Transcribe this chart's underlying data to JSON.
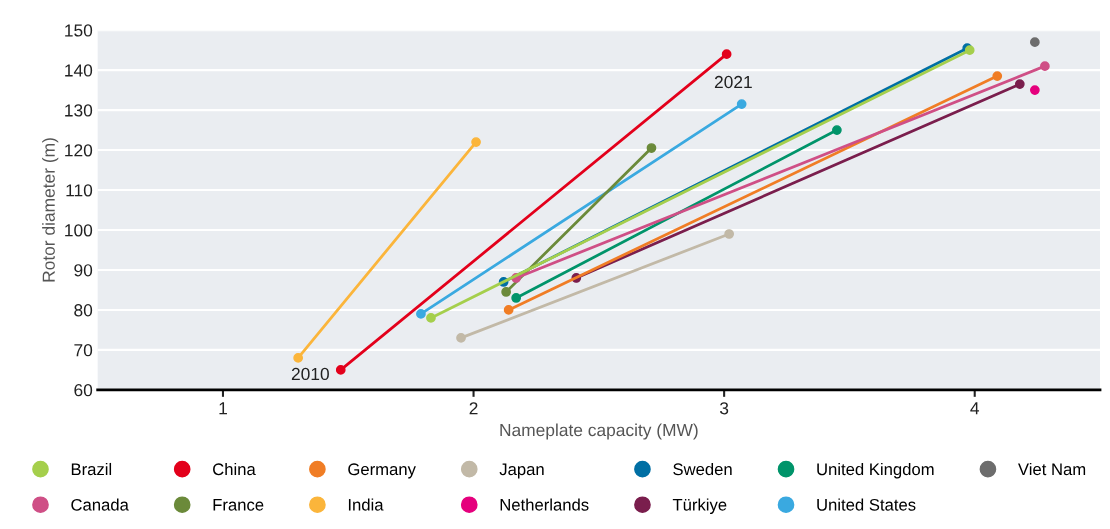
{
  "chart_data": {
    "type": "line",
    "xlabel": "Nameplate capacity (MW)",
    "ylabel": "Rotor diameter (m)",
    "xlim": [
      0.5,
      4.5
    ],
    "xticks": [
      1,
      2,
      3,
      4
    ],
    "ylim": [
      60,
      150
    ],
    "yticks": [
      60,
      70,
      80,
      90,
      100,
      110,
      120,
      130,
      140,
      150
    ],
    "grid": "y",
    "legend": "bottom",
    "marker": "circle",
    "line_style": "solid",
    "annotations": [
      {
        "text": "2010",
        "x": 1.47,
        "y": 65
      },
      {
        "text": "2021",
        "x": 3.07,
        "y": 131.5
      }
    ],
    "series": [
      {
        "name": "Brazil",
        "color": "#a5cf4c",
        "x": [
          1.83,
          3.98
        ],
        "values": [
          78,
          145
        ]
      },
      {
        "name": "Canada",
        "color": "#cf4f86",
        "x": [
          2.17,
          4.28
        ],
        "values": [
          88,
          141
        ]
      },
      {
        "name": "China",
        "color": "#e3001b",
        "x": [
          1.47,
          3.01
        ],
        "values": [
          65,
          144
        ]
      },
      {
        "name": "France",
        "color": "#6b8a3a",
        "x": [
          2.13,
          2.71
        ],
        "values": [
          84.5,
          120.5
        ]
      },
      {
        "name": "Germany",
        "color": "#f07d25",
        "x": [
          2.14,
          4.09
        ],
        "values": [
          80,
          138.5
        ]
      },
      {
        "name": "India",
        "color": "#fbb53b",
        "x": [
          1.3,
          2.01
        ],
        "values": [
          68,
          122
        ]
      },
      {
        "name": "Japan",
        "color": "#c2b9a7",
        "x": [
          1.95,
          3.02
        ],
        "values": [
          73,
          99
        ]
      },
      {
        "name": "Netherlands",
        "color": "#e5007d",
        "x": [
          4.24
        ],
        "values": [
          135
        ]
      },
      {
        "name": "Sweden",
        "color": "#006fa4",
        "x": [
          2.12,
          3.97
        ],
        "values": [
          87,
          145.5
        ]
      },
      {
        "name": "Türkiye",
        "color": "#7a1e4d",
        "x": [
          2.41,
          4.18
        ],
        "values": [
          88,
          136.5
        ]
      },
      {
        "name": "United Kingdom",
        "color": "#00946a",
        "x": [
          2.17,
          3.45
        ],
        "values": [
          83,
          125
        ]
      },
      {
        "name": "United States",
        "color": "#3aa9e0",
        "x": [
          1.79,
          3.07
        ],
        "values": [
          79,
          131.5
        ]
      },
      {
        "name": "Viet Nam",
        "color": "#6d6d6d",
        "x": [
          4.24
        ],
        "values": [
          147
        ]
      }
    ]
  }
}
